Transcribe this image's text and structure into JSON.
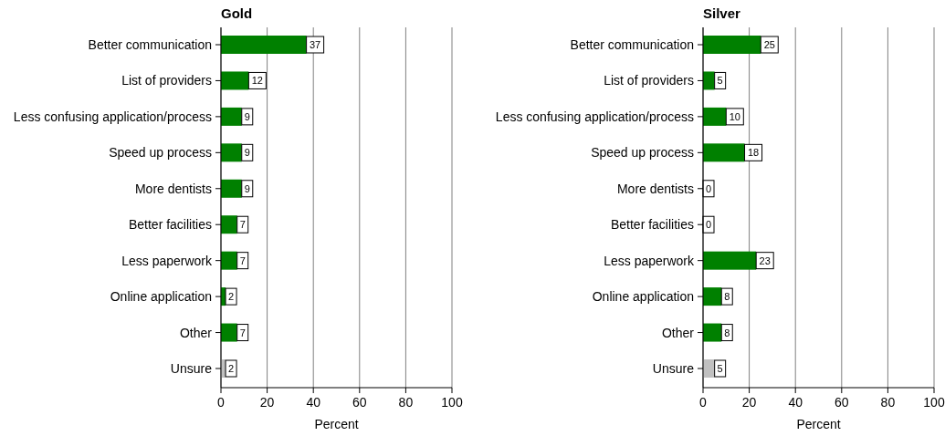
{
  "chart_data": [
    {
      "type": "bar",
      "orientation": "horizontal",
      "title": "Gold",
      "xlabel": "Percent",
      "categories": [
        "Better communication",
        "List of providers",
        "Less confusing application/process",
        "Speed up process",
        "More dentists",
        "Better facilities",
        "Less paperwork",
        "Online application",
        "Other",
        "Unsure"
      ],
      "values": [
        37,
        12,
        9,
        9,
        9,
        7,
        7,
        2,
        7,
        2
      ],
      "colors": [
        "#008000",
        "#008000",
        "#008000",
        "#008000",
        "#008000",
        "#008000",
        "#008000",
        "#008000",
        "#008000",
        "#c0c0c0"
      ],
      "xlim": [
        0,
        100
      ],
      "xticks": [
        0,
        20,
        40,
        60,
        80,
        100
      ],
      "grid": "x",
      "data_labels": true
    },
    {
      "type": "bar",
      "orientation": "horizontal",
      "title": "Silver",
      "xlabel": "Percent",
      "categories": [
        "Better communication",
        "List of providers",
        "Less confusing application/process",
        "Speed up process",
        "More dentists",
        "Better facilities",
        "Less paperwork",
        "Online application",
        "Other",
        "Unsure"
      ],
      "values": [
        25,
        5,
        10,
        18,
        0,
        0,
        23,
        8,
        8,
        5
      ],
      "colors": [
        "#008000",
        "#008000",
        "#008000",
        "#008000",
        "#008000",
        "#008000",
        "#008000",
        "#008000",
        "#008000",
        "#c0c0c0"
      ],
      "xlim": [
        0,
        100
      ],
      "xticks": [
        0,
        20,
        40,
        60,
        80,
        100
      ],
      "grid": "x",
      "data_labels": true
    }
  ]
}
